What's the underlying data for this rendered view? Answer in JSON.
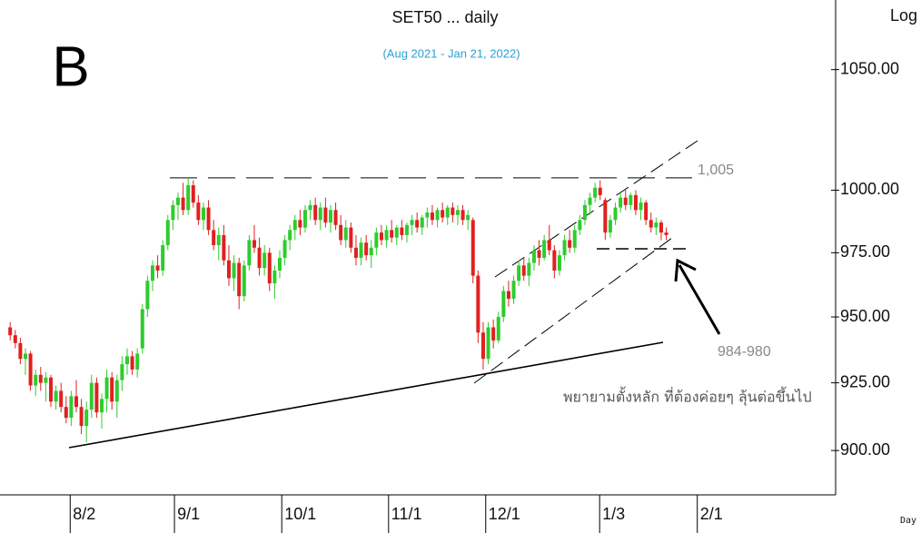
{
  "chart_data": {
    "type": "candlestick",
    "title": "SET50 ... daily",
    "subtitle": "(Aug 2021 - Jan 21, 2022)",
    "panel_label": "B",
    "scale_label": "Log",
    "x_axis_label": "Day",
    "log_scale": true,
    "up_color": "#2ecc2e",
    "down_color": "#e02020",
    "ylim": [
      884,
      1080
    ],
    "yticks": [
      {
        "value": 900,
        "label": "900.00"
      },
      {
        "value": 925,
        "label": "925.00"
      },
      {
        "value": 950,
        "label": "950.00"
      },
      {
        "value": 975,
        "label": "975.00"
      },
      {
        "value": 1000,
        "label": "1000.00"
      },
      {
        "value": 1050,
        "label": "1050.00"
      }
    ],
    "xlim": [
      -2,
      162.3
    ],
    "xticks": [
      {
        "value": 11.8,
        "label": "8/2"
      },
      {
        "value": 32.3,
        "label": "9/1"
      },
      {
        "value": 53.4,
        "label": "10/1"
      },
      {
        "value": 74.4,
        "label": "11/1"
      },
      {
        "value": 93.5,
        "label": "12/1"
      },
      {
        "value": 115.9,
        "label": "1/3"
      },
      {
        "value": 135.1,
        "label": "2/1"
      }
    ],
    "annotations": [
      {
        "value": 1005,
        "label": "1,005"
      }
    ],
    "notes": [
      "984-980",
      "พยายามตั้งหลัก ที่ต้องค่อยๆ ลุ้นต่อขึ้นไป"
    ],
    "candles": [
      [
        946,
        948,
        941,
        943
      ],
      [
        943,
        945,
        938,
        940
      ],
      [
        940,
        942,
        932,
        934
      ],
      [
        934,
        938,
        928,
        936
      ],
      [
        936,
        937,
        922,
        924
      ],
      [
        924,
        930,
        920,
        928
      ],
      [
        928,
        931,
        922,
        925
      ],
      [
        925,
        929,
        918,
        927
      ],
      [
        927,
        928,
        916,
        918
      ],
      [
        918,
        924,
        915,
        922
      ],
      [
        922,
        925,
        914,
        916
      ],
      [
        916,
        920,
        910,
        912
      ],
      [
        912,
        922,
        909,
        920
      ],
      [
        920,
        926,
        914,
        916
      ],
      [
        916,
        919,
        906,
        909
      ],
      [
        909,
        918,
        903,
        915
      ],
      [
        915,
        928,
        912,
        925
      ],
      [
        925,
        927,
        912,
        914
      ],
      [
        914,
        921,
        908,
        919
      ],
      [
        919,
        930,
        914,
        927
      ],
      [
        927,
        929,
        915,
        918
      ],
      [
        918,
        928,
        912,
        926
      ],
      [
        926,
        935,
        922,
        932
      ],
      [
        932,
        938,
        928,
        935
      ],
      [
        935,
        937,
        928,
        930
      ],
      [
        930,
        938,
        927,
        936
      ],
      [
        938,
        955,
        936,
        953
      ],
      [
        953,
        966,
        950,
        964
      ],
      [
        964,
        972,
        960,
        970
      ],
      [
        970,
        974,
        965,
        968
      ],
      [
        968,
        980,
        966,
        978
      ],
      [
        978,
        990,
        976,
        988
      ],
      [
        988,
        996,
        984,
        994
      ],
      [
        994,
        999,
        988,
        997
      ],
      [
        997,
        1003,
        990,
        992
      ],
      [
        992,
        1005,
        990,
        1002
      ],
      [
        1002,
        1004,
        993,
        995
      ],
      [
        995,
        998,
        986,
        988
      ],
      [
        988,
        995,
        984,
        993
      ],
      [
        993,
        996,
        982,
        984
      ],
      [
        984,
        988,
        976,
        978
      ],
      [
        978,
        985,
        972,
        982
      ],
      [
        982,
        986,
        970,
        972
      ],
      [
        972,
        978,
        962,
        965
      ],
      [
        965,
        974,
        960,
        971
      ],
      [
        971,
        973,
        953,
        958
      ],
      [
        958,
        972,
        956,
        970
      ],
      [
        970,
        982,
        968,
        980
      ],
      [
        980,
        986,
        975,
        977
      ],
      [
        977,
        981,
        966,
        969
      ],
      [
        969,
        978,
        966,
        975
      ],
      [
        975,
        977,
        960,
        963
      ],
      [
        963,
        970,
        957,
        968
      ],
      [
        968,
        976,
        965,
        973
      ],
      [
        973,
        982,
        970,
        980
      ],
      [
        980,
        986,
        976,
        984
      ],
      [
        984,
        990,
        980,
        988
      ],
      [
        988,
        992,
        982,
        985
      ],
      [
        985,
        994,
        983,
        992
      ],
      [
        992,
        996,
        988,
        994
      ],
      [
        994,
        997,
        986,
        988
      ],
      [
        988,
        995,
        984,
        993
      ],
      [
        993,
        997,
        985,
        987
      ],
      [
        987,
        994,
        983,
        992
      ],
      [
        992,
        995,
        984,
        986
      ],
      [
        986,
        990,
        978,
        980
      ],
      [
        980,
        988,
        977,
        985
      ],
      [
        985,
        987,
        975,
        977
      ],
      [
        977,
        982,
        970,
        973
      ],
      [
        973,
        981,
        970,
        979
      ],
      [
        979,
        982,
        972,
        974
      ],
      [
        974,
        980,
        969,
        977
      ],
      [
        977,
        985,
        974,
        983
      ],
      [
        983,
        986,
        978,
        980
      ],
      [
        980,
        986,
        977,
        984
      ],
      [
        984,
        988,
        979,
        981
      ],
      [
        981,
        986,
        978,
        985
      ],
      [
        985,
        988,
        980,
        982
      ],
      [
        982,
        987,
        979,
        986
      ],
      [
        986,
        990,
        982,
        988
      ],
      [
        988,
        991,
        983,
        985
      ],
      [
        985,
        990,
        982,
        989
      ],
      [
        989,
        993,
        985,
        991
      ],
      [
        991,
        994,
        986,
        988
      ],
      [
        988,
        993,
        985,
        992
      ],
      [
        992,
        995,
        987,
        989
      ],
      [
        989,
        994,
        986,
        993
      ],
      [
        993,
        995,
        987,
        990
      ],
      [
        990,
        994,
        986,
        992
      ],
      [
        992,
        994,
        986,
        988
      ],
      [
        988,
        992,
        984,
        990
      ],
      [
        988,
        989,
        963,
        966
      ],
      [
        966,
        968,
        940,
        944
      ],
      [
        944,
        948,
        930,
        934
      ],
      [
        934,
        948,
        932,
        946
      ],
      [
        946,
        949,
        938,
        941
      ],
      [
        941,
        952,
        940,
        950
      ],
      [
        950,
        962,
        948,
        960
      ],
      [
        960,
        964,
        954,
        957
      ],
      [
        957,
        966,
        955,
        964
      ],
      [
        964,
        972,
        962,
        970
      ],
      [
        970,
        973,
        964,
        966
      ],
      [
        966,
        973,
        962,
        971
      ],
      [
        971,
        978,
        968,
        976
      ],
      [
        976,
        980,
        970,
        973
      ],
      [
        973,
        982,
        972,
        980
      ],
      [
        980,
        986,
        974,
        976
      ],
      [
        976,
        978,
        965,
        968
      ],
      [
        968,
        976,
        966,
        974
      ],
      [
        974,
        982,
        972,
        980
      ],
      [
        980,
        984,
        975,
        977
      ],
      [
        977,
        986,
        975,
        984
      ],
      [
        984,
        990,
        982,
        988
      ],
      [
        988,
        996,
        986,
        994
      ],
      [
        994,
        999,
        990,
        997
      ],
      [
        997,
        1003,
        995,
        1001
      ],
      [
        1001,
        1004,
        996,
        998
      ],
      [
        996,
        997,
        980,
        983
      ],
      [
        983,
        990,
        981,
        988
      ],
      [
        988,
        995,
        986,
        993
      ],
      [
        993,
        999,
        991,
        997
      ],
      [
        997,
        1000,
        992,
        994
      ],
      [
        994,
        999,
        992,
        998
      ],
      [
        998,
        1000,
        990,
        992
      ],
      [
        992,
        997,
        988,
        995
      ],
      [
        995,
        996,
        986,
        988
      ],
      [
        988,
        991,
        983,
        985
      ],
      [
        985,
        989,
        982,
        987
      ],
      [
        987,
        988,
        980,
        983
      ],
      [
        983,
        985,
        980,
        982
      ]
    ]
  }
}
